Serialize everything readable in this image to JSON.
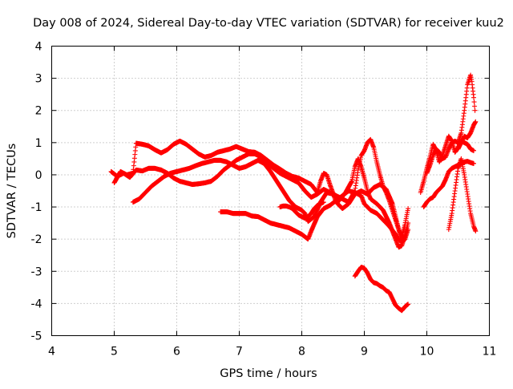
{
  "chart_data": {
    "type": "scatter",
    "title": "Day 008 of 2024, Sidereal Day-to-day VTEC variation (SDTVAR) for receiver kuu2",
    "xlabel": "GPS time / hours",
    "ylabel": "SDTVAR / TECUs",
    "xlim": [
      4,
      11
    ],
    "ylim": [
      -5,
      4
    ],
    "x_ticks": [
      "4",
      "5",
      "6",
      "7",
      "8",
      "9",
      "10",
      "11"
    ],
    "y_ticks": [
      "-5",
      "-4",
      "-3",
      "-2",
      "-1",
      "0",
      "1",
      "2",
      "3",
      "4"
    ],
    "grid": true,
    "marker": "+",
    "color": "#ff0000",
    "series": [
      {
        "points": [
          [
            4.95,
            0.1
          ],
          [
            5.05,
            -0.05
          ],
          [
            5.15,
            0.05
          ],
          [
            5.25,
            -0.08
          ],
          [
            5.35,
            0.15
          ],
          [
            5.45,
            0.12
          ],
          [
            5.55,
            0.2
          ],
          [
            5.65,
            0.2
          ],
          [
            5.75,
            0.15
          ],
          [
            5.85,
            0.05
          ],
          [
            5.95,
            -0.1
          ],
          [
            6.05,
            -0.2
          ],
          [
            6.15,
            -0.25
          ],
          [
            6.25,
            -0.3
          ],
          [
            6.35,
            -0.28
          ],
          [
            6.45,
            -0.25
          ],
          [
            6.55,
            -0.2
          ],
          [
            6.65,
            -0.05
          ],
          [
            6.75,
            0.15
          ],
          [
            6.85,
            0.3
          ],
          [
            6.95,
            0.45
          ],
          [
            7.05,
            0.55
          ],
          [
            7.15,
            0.65
          ],
          [
            7.25,
            0.65
          ],
          [
            7.35,
            0.55
          ],
          [
            7.45,
            0.35
          ],
          [
            7.55,
            0.2
          ],
          [
            7.65,
            0.05
          ],
          [
            7.75,
            -0.05
          ],
          [
            7.85,
            -0.15
          ],
          [
            7.95,
            -0.25
          ],
          [
            8.05,
            -0.5
          ],
          [
            8.15,
            -0.7
          ],
          [
            8.25,
            -0.6
          ],
          [
            8.35,
            -0.45
          ],
          [
            8.45,
            -0.55
          ],
          [
            8.55,
            -0.65
          ],
          [
            8.65,
            -0.75
          ],
          [
            8.75,
            -0.85
          ],
          [
            8.85,
            -0.5
          ],
          [
            8.9,
            0.15
          ],
          [
            8.95,
            0.6
          ],
          [
            9.0,
            0.75
          ],
          [
            9.05,
            1.0
          ],
          [
            9.1,
            1.1
          ],
          [
            9.15,
            0.85
          ],
          [
            9.2,
            0.4
          ],
          [
            9.25,
            0.0
          ],
          [
            9.3,
            -0.35
          ],
          [
            9.35,
            -0.55
          ],
          [
            9.4,
            -0.8
          ],
          [
            9.45,
            -1.1
          ],
          [
            9.5,
            -1.4
          ],
          [
            9.55,
            -1.7
          ],
          [
            9.6,
            -1.9
          ],
          [
            9.65,
            -1.55
          ],
          [
            9.7,
            -1.05
          ]
        ]
      },
      {
        "points": [
          [
            5.0,
            -0.25
          ],
          [
            5.1,
            0.1
          ],
          [
            5.2,
            0.0
          ],
          [
            5.3,
            0.05
          ],
          [
            5.35,
            0.98
          ],
          [
            5.45,
            0.95
          ],
          [
            5.55,
            0.9
          ],
          [
            5.65,
            0.78
          ],
          [
            5.75,
            0.68
          ],
          [
            5.85,
            0.78
          ],
          [
            5.95,
            0.95
          ],
          [
            6.05,
            1.05
          ],
          [
            6.15,
            0.95
          ],
          [
            6.25,
            0.8
          ],
          [
            6.35,
            0.65
          ],
          [
            6.45,
            0.55
          ],
          [
            6.55,
            0.6
          ],
          [
            6.65,
            0.7
          ],
          [
            6.75,
            0.75
          ],
          [
            6.85,
            0.8
          ],
          [
            6.95,
            0.88
          ],
          [
            7.05,
            0.8
          ],
          [
            7.15,
            0.72
          ],
          [
            7.25,
            0.7
          ],
          [
            7.35,
            0.6
          ],
          [
            7.45,
            0.45
          ],
          [
            7.55,
            0.3
          ],
          [
            7.65,
            0.18
          ],
          [
            7.75,
            0.05
          ],
          [
            7.85,
            -0.05
          ],
          [
            7.95,
            -0.1
          ],
          [
            8.05,
            -0.2
          ],
          [
            8.15,
            -0.3
          ],
          [
            8.25,
            -0.55
          ],
          [
            8.3,
            -0.2
          ],
          [
            8.35,
            0.05
          ],
          [
            8.4,
            0.0
          ],
          [
            8.45,
            -0.3
          ],
          [
            8.55,
            -0.85
          ],
          [
            8.65,
            -1.05
          ],
          [
            8.75,
            -0.9
          ],
          [
            8.85,
            -0.6
          ],
          [
            8.95,
            -0.5
          ],
          [
            9.05,
            -0.6
          ],
          [
            9.15,
            -0.4
          ],
          [
            9.25,
            -0.3
          ],
          [
            9.35,
            -0.45
          ],
          [
            9.45,
            -0.9
          ],
          [
            9.55,
            -1.7
          ],
          [
            9.6,
            -2.1
          ],
          [
            9.65,
            -2.0
          ],
          [
            9.7,
            -1.7
          ]
        ]
      },
      {
        "points": [
          [
            5.3,
            -0.85
          ],
          [
            5.4,
            -0.75
          ],
          [
            5.5,
            -0.55
          ],
          [
            5.6,
            -0.35
          ],
          [
            5.7,
            -0.2
          ],
          [
            5.8,
            -0.05
          ],
          [
            5.9,
            0.05
          ],
          [
            6.0,
            0.1
          ],
          [
            6.1,
            0.15
          ],
          [
            6.2,
            0.2
          ],
          [
            6.3,
            0.28
          ],
          [
            6.4,
            0.35
          ],
          [
            6.5,
            0.4
          ],
          [
            6.6,
            0.45
          ],
          [
            6.7,
            0.45
          ],
          [
            6.8,
            0.4
          ],
          [
            6.9,
            0.3
          ],
          [
            7.0,
            0.2
          ],
          [
            7.1,
            0.25
          ],
          [
            7.2,
            0.35
          ],
          [
            7.3,
            0.45
          ],
          [
            7.4,
            0.35
          ],
          [
            7.5,
            0.1
          ],
          [
            7.6,
            -0.2
          ],
          [
            7.7,
            -0.5
          ],
          [
            7.8,
            -0.8
          ],
          [
            7.9,
            -1.0
          ],
          [
            8.0,
            -1.1
          ],
          [
            8.05,
            -1.2
          ],
          [
            8.1,
            -1.45
          ],
          [
            8.2,
            -1.3
          ],
          [
            8.3,
            -0.85
          ],
          [
            8.4,
            -0.55
          ],
          [
            8.5,
            -0.6
          ],
          [
            8.6,
            -0.8
          ],
          [
            8.7,
            -0.55
          ],
          [
            8.8,
            -0.2
          ],
          [
            8.85,
            0.25
          ],
          [
            8.9,
            0.5
          ],
          [
            8.95,
            0.25
          ],
          [
            9.0,
            -0.1
          ],
          [
            9.05,
            -0.5
          ],
          [
            9.1,
            -0.75
          ],
          [
            9.2,
            -0.9
          ],
          [
            9.3,
            -1.1
          ],
          [
            9.4,
            -1.5
          ],
          [
            9.5,
            -2.0
          ],
          [
            9.55,
            -2.25
          ],
          [
            9.6,
            -2.2
          ],
          [
            9.65,
            -1.9
          ],
          [
            9.7,
            -1.5
          ]
        ]
      },
      {
        "points": [
          [
            6.7,
            -1.15
          ],
          [
            6.8,
            -1.15
          ],
          [
            6.9,
            -1.2
          ],
          [
            7.0,
            -1.2
          ],
          [
            7.1,
            -1.2
          ],
          [
            7.2,
            -1.28
          ],
          [
            7.3,
            -1.3
          ],
          [
            7.4,
            -1.4
          ],
          [
            7.5,
            -1.5
          ],
          [
            7.6,
            -1.55
          ],
          [
            7.7,
            -1.6
          ],
          [
            7.8,
            -1.65
          ],
          [
            7.9,
            -1.75
          ],
          [
            8.0,
            -1.85
          ],
          [
            8.1,
            -2.0
          ],
          [
            8.15,
            -1.75
          ],
          [
            8.25,
            -1.3
          ],
          [
            8.35,
            -1.05
          ],
          [
            8.45,
            -0.95
          ],
          [
            8.55,
            -0.8
          ],
          [
            8.65,
            -0.65
          ],
          [
            8.75,
            -0.5
          ],
          [
            8.85,
            -0.55
          ],
          [
            8.95,
            -0.65
          ],
          [
            9.0,
            -0.9
          ],
          [
            9.1,
            -1.1
          ],
          [
            9.2,
            -1.2
          ],
          [
            9.3,
            -1.4
          ],
          [
            9.4,
            -1.6
          ],
          [
            9.5,
            -1.85
          ],
          [
            9.55,
            -2.0
          ],
          [
            9.6,
            -2.1
          ],
          [
            9.65,
            -1.9
          ]
        ]
      },
      {
        "points": [
          [
            7.65,
            -1.0
          ],
          [
            7.7,
            -0.97
          ],
          [
            7.75,
            -0.97
          ],
          [
            7.8,
            -1.0
          ],
          [
            7.85,
            -1.05
          ],
          [
            7.9,
            -1.15
          ],
          [
            7.95,
            -1.25
          ],
          [
            8.0,
            -1.3
          ],
          [
            8.05,
            -1.35
          ],
          [
            8.1,
            -1.3
          ],
          [
            8.15,
            -1.2
          ],
          [
            8.2,
            -1.05
          ],
          [
            8.25,
            -0.95
          ],
          [
            8.3,
            -0.9
          ],
          [
            8.35,
            -0.85
          ]
        ]
      },
      {
        "points": [
          [
            8.85,
            -3.15
          ],
          [
            8.9,
            -3.0
          ],
          [
            8.95,
            -2.87
          ],
          [
            9.0,
            -2.9
          ],
          [
            9.05,
            -3.05
          ],
          [
            9.1,
            -3.25
          ],
          [
            9.15,
            -3.35
          ],
          [
            9.2,
            -3.38
          ],
          [
            9.25,
            -3.45
          ],
          [
            9.3,
            -3.5
          ],
          [
            9.35,
            -3.6
          ],
          [
            9.4,
            -3.65
          ],
          [
            9.45,
            -3.85
          ],
          [
            9.5,
            -4.05
          ],
          [
            9.55,
            -4.15
          ],
          [
            9.6,
            -4.22
          ],
          [
            9.65,
            -4.1
          ],
          [
            9.7,
            -4.02
          ]
        ]
      },
      {
        "points": [
          [
            9.9,
            -0.55
          ],
          [
            9.95,
            -0.2
          ],
          [
            10.0,
            0.2
          ],
          [
            10.05,
            0.55
          ],
          [
            10.1,
            0.95
          ],
          [
            10.15,
            0.75
          ],
          [
            10.2,
            0.4
          ],
          [
            10.25,
            0.6
          ],
          [
            10.3,
            0.9
          ],
          [
            10.35,
            1.2
          ],
          [
            10.4,
            1.05
          ],
          [
            10.45,
            0.7
          ],
          [
            10.5,
            0.85
          ],
          [
            10.55,
            1.05
          ],
          [
            10.6,
            1.0
          ],
          [
            10.65,
            0.95
          ],
          [
            10.7,
            0.8
          ],
          [
            10.75,
            0.75
          ]
        ]
      },
      {
        "points": [
          [
            9.95,
            -1.0
          ],
          [
            10.0,
            -0.85
          ],
          [
            10.05,
            -0.75
          ],
          [
            10.1,
            -0.7
          ],
          [
            10.15,
            -0.55
          ],
          [
            10.2,
            -0.45
          ],
          [
            10.25,
            -0.35
          ],
          [
            10.3,
            -0.15
          ],
          [
            10.35,
            0.1
          ],
          [
            10.4,
            0.2
          ],
          [
            10.45,
            0.25
          ],
          [
            10.5,
            0.3
          ],
          [
            10.55,
            0.35
          ],
          [
            10.6,
            0.4
          ],
          [
            10.65,
            0.42
          ],
          [
            10.7,
            0.38
          ],
          [
            10.75,
            0.35
          ]
        ]
      },
      {
        "points": [
          [
            10.0,
            0.05
          ],
          [
            10.05,
            0.3
          ],
          [
            10.1,
            0.6
          ],
          [
            10.15,
            0.8
          ],
          [
            10.2,
            0.7
          ],
          [
            10.25,
            0.5
          ],
          [
            10.3,
            0.55
          ],
          [
            10.35,
            0.8
          ],
          [
            10.4,
            1.0
          ],
          [
            10.45,
            1.05
          ],
          [
            10.5,
            1.0
          ],
          [
            10.55,
            1.3
          ],
          [
            10.6,
            2.0
          ],
          [
            10.65,
            2.8
          ],
          [
            10.7,
            3.1
          ],
          [
            10.72,
            2.9
          ],
          [
            10.75,
            2.4
          ],
          [
            10.77,
            2.0
          ]
        ]
      },
      {
        "points": [
          [
            10.35,
            -1.7
          ],
          [
            10.4,
            -1.2
          ],
          [
            10.45,
            -0.5
          ],
          [
            10.5,
            0.2
          ],
          [
            10.55,
            0.5
          ],
          [
            10.6,
            0.0
          ],
          [
            10.65,
            -0.6
          ],
          [
            10.7,
            -1.2
          ],
          [
            10.75,
            -1.6
          ],
          [
            10.78,
            -1.75
          ]
        ]
      },
      {
        "points": [
          [
            10.5,
            0.8
          ],
          [
            10.55,
            1.0
          ],
          [
            10.6,
            1.2
          ],
          [
            10.65,
            1.15
          ],
          [
            10.7,
            1.3
          ],
          [
            10.75,
            1.55
          ],
          [
            10.78,
            1.65
          ]
        ]
      }
    ]
  }
}
